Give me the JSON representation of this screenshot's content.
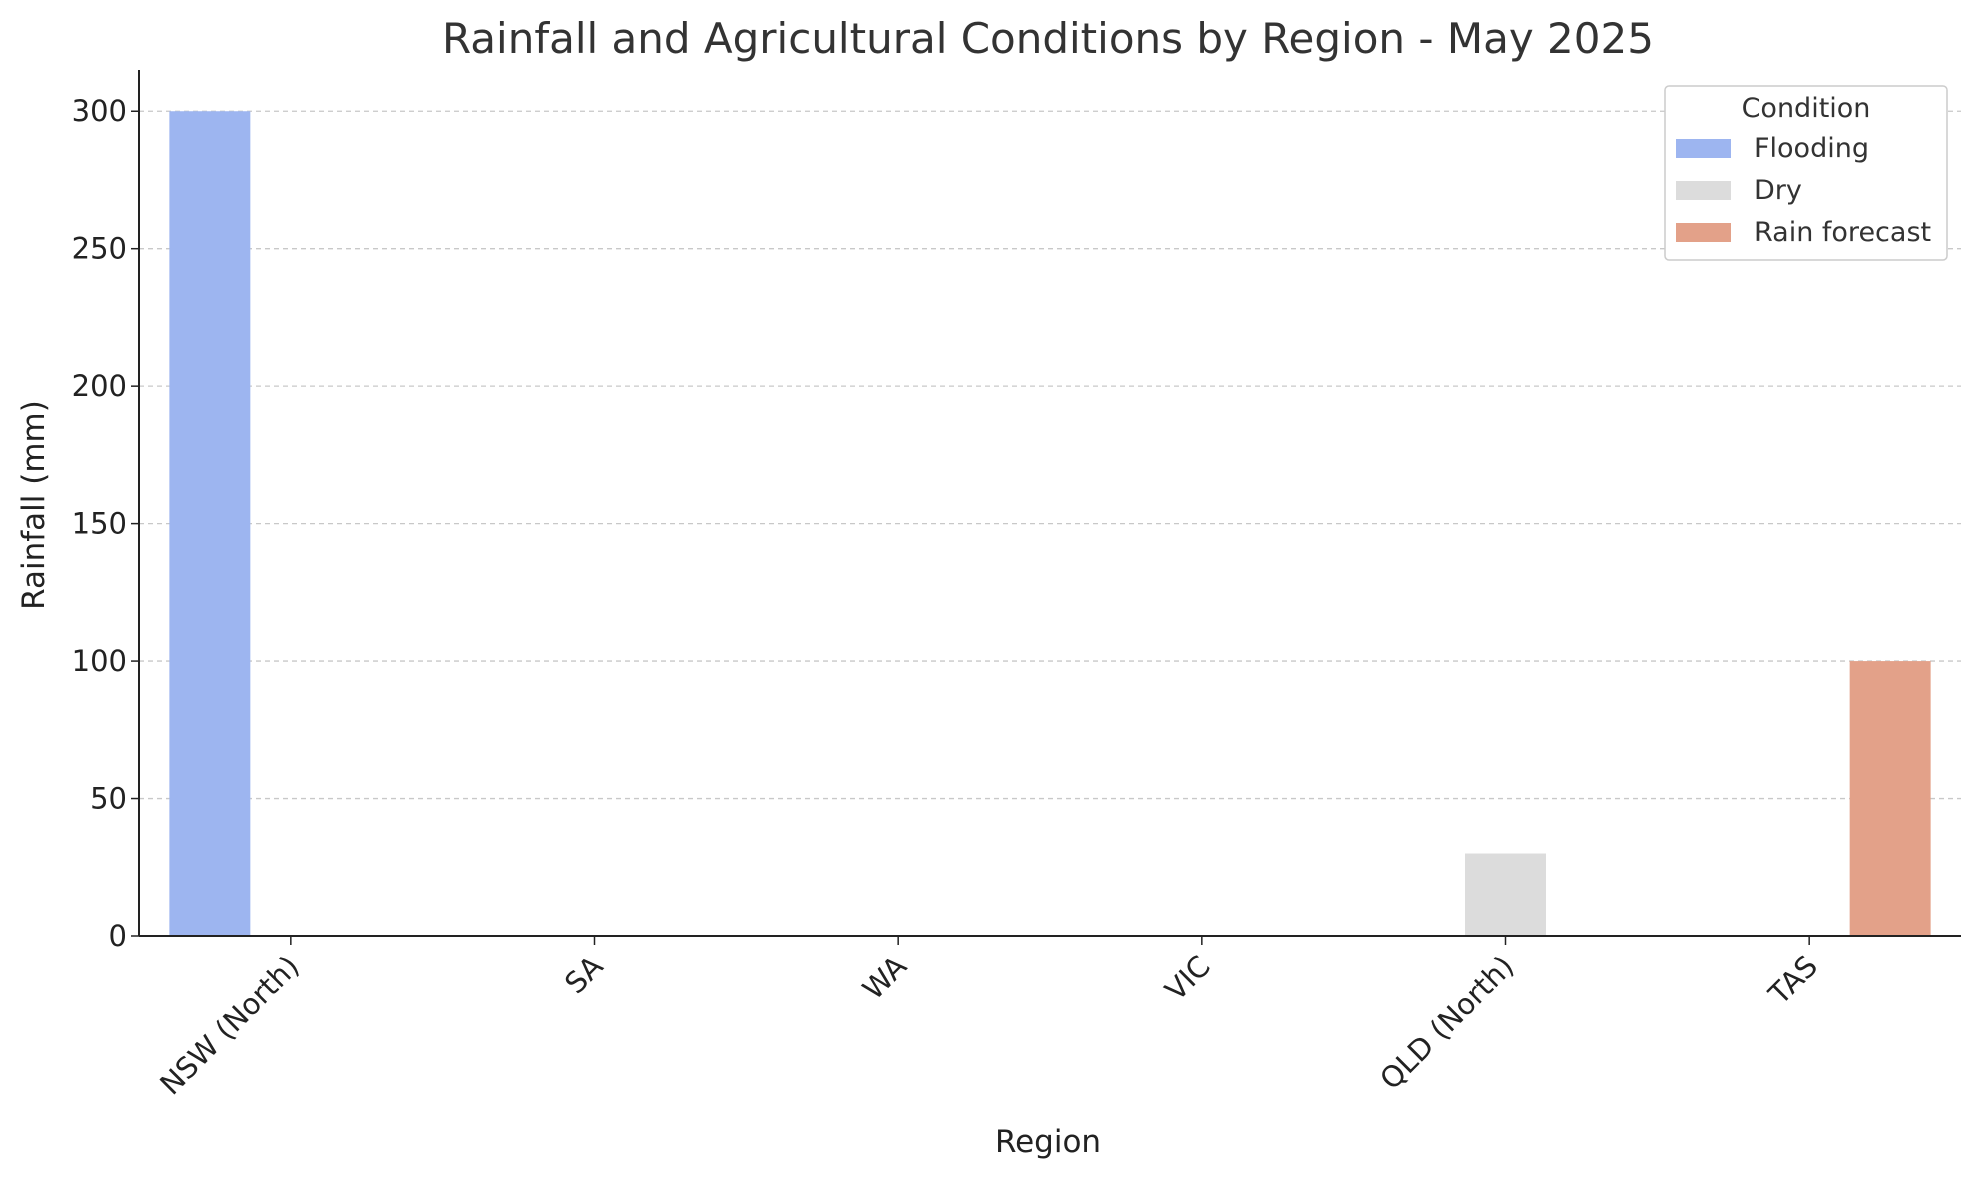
{
  "chart_data": {
    "type": "bar",
    "title": "Rainfall and Agricultural Conditions by Region - May 2025",
    "xlabel": "Region",
    "ylabel": "Rainfall (mm)",
    "ylim": [
      0,
      315
    ],
    "yticks": [
      0,
      50,
      100,
      150,
      200,
      250,
      300
    ],
    "grid": "horizontal dashed",
    "legend_placement": "top-right",
    "legend_title": "Condition",
    "categories": [
      "NSW (North)",
      "SA",
      "WA",
      "VIC",
      "QLD (North)",
      "TAS"
    ],
    "series": [
      {
        "name": "Flooding",
        "color": "#9db5f0",
        "values": [
          300,
          null,
          null,
          null,
          null,
          null
        ]
      },
      {
        "name": "Dry",
        "color": "#dcdcdc",
        "values": [
          null,
          null,
          null,
          null,
          30,
          null
        ]
      },
      {
        "name": "Rain forecast",
        "color": "#e3a189",
        "values": [
          null,
          null,
          null,
          null,
          null,
          100
        ]
      }
    ]
  }
}
